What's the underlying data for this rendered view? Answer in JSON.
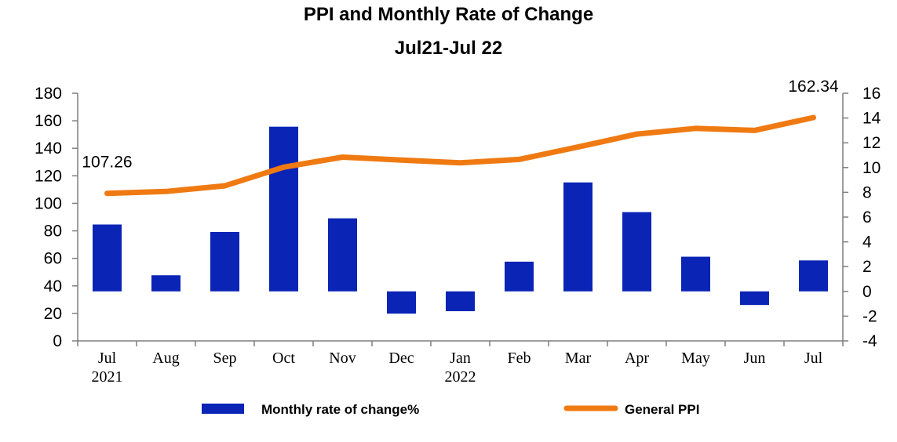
{
  "chart_data": {
    "type": "bar+line",
    "title": "PPI and Monthly Rate of Change",
    "subtitle": "Jul21-Jul 22",
    "categories": [
      "Jul",
      "Aug",
      "Sep",
      "Oct",
      "Nov",
      "Dec",
      "Jan",
      "Feb",
      "Mar",
      "Apr",
      "May",
      "Jun",
      "Jul"
    ],
    "year_labels": [
      "2021",
      "",
      "",
      "",
      "",
      "",
      "2022",
      "",
      "",
      "",
      "",
      "",
      ""
    ],
    "series": [
      {
        "name": "Monthly rate of change%",
        "type": "bar",
        "axis": "right",
        "color": "#0a24b5",
        "values": [
          5.4,
          1.3,
          4.8,
          13.3,
          5.9,
          -1.8,
          -1.6,
          2.4,
          8.8,
          6.4,
          2.8,
          -1.1,
          2.5
        ]
      },
      {
        "name": "General  PPI",
        "type": "line",
        "axis": "left",
        "color": "#f07a12",
        "values": [
          107.26,
          108.6,
          112.7,
          126.3,
          133.6,
          131.4,
          129.4,
          131.9,
          140.9,
          150.3,
          154.5,
          153.0,
          162.34
        ]
      }
    ],
    "y_left": {
      "min": 0,
      "max": 180,
      "step": 20,
      "ticks": [
        "0",
        "20",
        "40",
        "60",
        "80",
        "100",
        "120",
        "140",
        "160",
        "180"
      ]
    },
    "y_right": {
      "min": -4,
      "max": 16,
      "step": 2,
      "ticks": [
        "-4",
        "-2",
        "0",
        "2",
        "4",
        "6",
        "8",
        "10",
        "12",
        "14",
        "16"
      ]
    },
    "annotations": [
      {
        "text": "107.26",
        "index": 0
      },
      {
        "text": "162.34",
        "index": 12
      }
    ],
    "grid": false,
    "legend_position": "bottom"
  }
}
